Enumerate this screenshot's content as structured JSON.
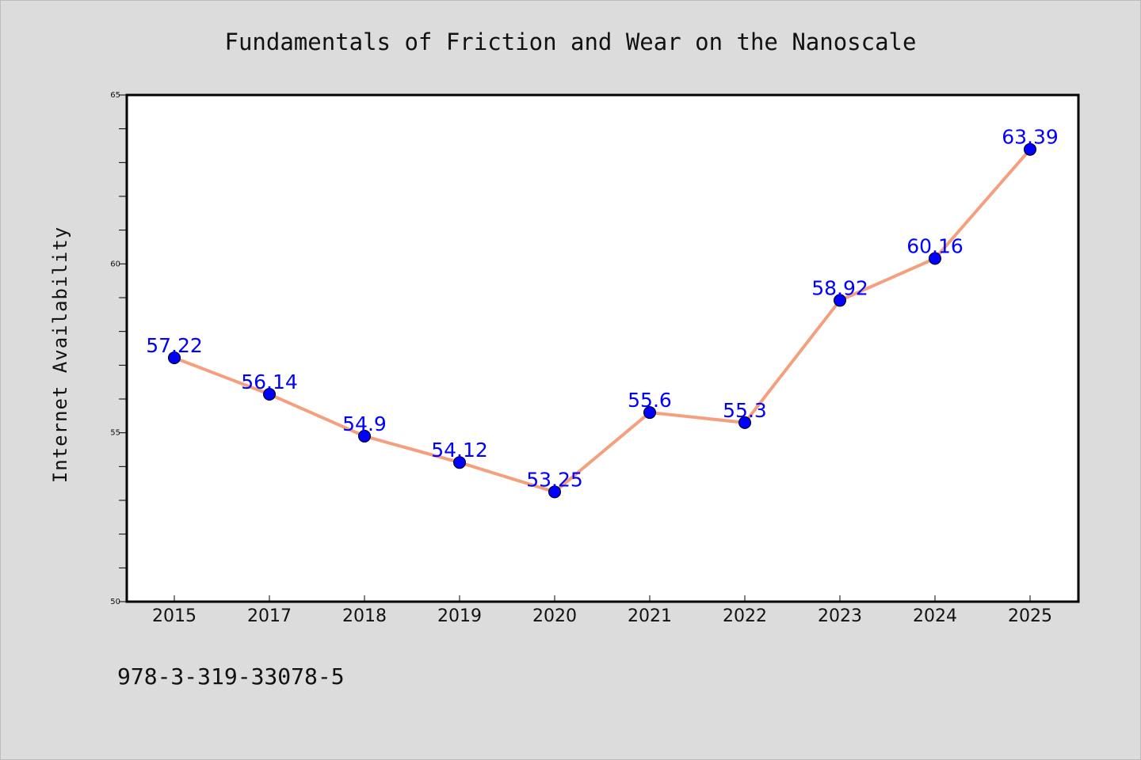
{
  "footer_text": "978-3-319-33078-5",
  "colors": {
    "background": "#dcdcdc",
    "plot_background": "#ffffff",
    "line": "#f4a07f",
    "marker": "#0000ff",
    "data_label": "#0000ff"
  },
  "chart_data": {
    "type": "line",
    "title": "Fundamentals of Friction and Wear on the Nanoscale",
    "xlabel": "",
    "ylabel": "Internet Availability",
    "categories": [
      "2015",
      "2017",
      "2018",
      "2019",
      "2020",
      "2021",
      "2022",
      "2023",
      "2024",
      "2025"
    ],
    "series": [
      {
        "values": [
          57.22,
          56.14,
          54.9,
          54.12,
          53.25,
          55.6,
          55.3,
          58.92,
          60.16,
          63.39
        ]
      }
    ],
    "ylim": [
      50,
      65
    ],
    "yticks": [
      50,
      55,
      60,
      65
    ],
    "grid": false,
    "legend": "none",
    "data_labels": true
  }
}
